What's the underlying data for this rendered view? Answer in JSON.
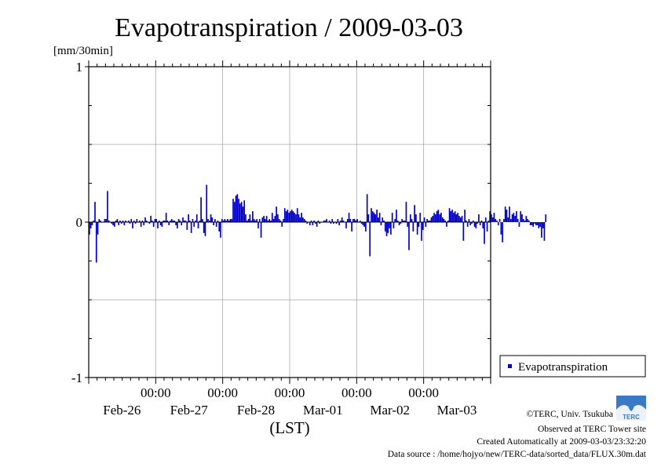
{
  "chart_data": {
    "type": "bar",
    "title": "Evapotranspiration / 2009-03-03",
    "unit_label": "[mm/30min]",
    "xlabel": "(LST)",
    "ylim": [
      -1,
      1
    ],
    "yticks": [
      {
        "v": 1,
        "label": "1"
      },
      {
        "v": 0,
        "label": "0"
      },
      {
        "v": -1,
        "label": "-1"
      }
    ],
    "x_range_hours": [
      0,
      144
    ],
    "xticks": [
      {
        "hour": 24,
        "time": "00:00",
        "date": "Feb-26"
      },
      {
        "hour": 48,
        "time": "00:00",
        "date": "Feb-27"
      },
      {
        "hour": 72,
        "time": "00:00",
        "date": "Feb-28"
      },
      {
        "hour": 96,
        "time": "00:00",
        "date": "Mar-01"
      },
      {
        "hour": 120,
        "time": "00:00",
        "date": "Mar-02"
      },
      {
        "hour": null,
        "time": "",
        "date": "Mar-03"
      }
    ],
    "grid": true,
    "legend_position": "right-bottom",
    "series": [
      {
        "name": "Evapotranspiration",
        "color": "#0000c8",
        "interval_hours": 0.5,
        "values": [
          -0.08,
          -0.04,
          -0.02,
          0.01,
          0.13,
          -0.26,
          -0.08,
          0.02,
          0.01,
          0,
          0,
          0.02,
          0.02,
          0.2,
          0.01,
          0,
          -0.01,
          -0.02,
          -0.03,
          0.01,
          0.02,
          -0.02,
          0.01,
          -0.01,
          0.01,
          -0.02,
          0.01,
          0,
          0.01,
          -0.01,
          0.02,
          -0.04,
          0.01,
          -0.01,
          0.02,
          0,
          0.01,
          -0.03,
          0.01,
          -0.02,
          0.03,
          0.01,
          0,
          -0.01,
          0.04,
          0.01,
          -0.03,
          0.02,
          0.02,
          -0.04,
          0.01,
          -0.02,
          -0.03,
          0.01,
          0.01,
          0.06,
          0.01,
          -0.02,
          0.01,
          0.02,
          0.01,
          0.01,
          -0.02,
          -0.04,
          0.02,
          0.01,
          -0.02,
          0.03,
          0.01,
          0.01,
          -0.05,
          0.05,
          0.01,
          -0.07,
          0.02,
          -0.03,
          0.01,
          0.05,
          -0.04,
          0.01,
          0.16,
          0.02,
          -0.07,
          -0.09,
          0.24,
          0.02,
          0.01,
          0.05,
          0.03,
          -0.02,
          0.02,
          -0.03,
          0.01,
          -0.06,
          -0.1,
          0.02,
          0.01,
          0.02,
          0.01,
          0.02,
          0.01,
          0.02,
          0.02,
          0.15,
          0.13,
          0.17,
          0.18,
          0.15,
          0.12,
          0.13,
          0.1,
          0.14,
          0.05,
          0.01,
          0.02,
          0.05,
          0.01,
          0.07,
          0.02,
          0.01,
          0.02,
          -0.04,
          0.02,
          -0.1,
          0.03,
          0.04,
          0.02,
          0.04,
          0.01,
          0.02,
          0.01,
          0.06,
          0.02,
          0.04,
          0.1,
          0.05,
          0.02,
          0.01,
          -0.03,
          0.02,
          0.09,
          0.07,
          0.08,
          0.06,
          0.07,
          0.08,
          0.07,
          0.06,
          0.05,
          0.09,
          0.05,
          0.03,
          0.06,
          0.03,
          0.02,
          0.01,
          -0.01,
          0,
          -0.02,
          0.01,
          -0.02,
          0.01,
          -0.01,
          -0.03,
          0.01,
          -0.01,
          0,
          0,
          0.01,
          0.01,
          0.02,
          0,
          0.01,
          -0.01,
          0.02,
          -0.01,
          0,
          -0.01,
          0.02,
          -0.02,
          0.01,
          0.03,
          0.01,
          0,
          -0.04,
          0.02,
          0.06,
          0.02,
          -0.06,
          0.02,
          0.02,
          0.01,
          0.02,
          0,
          0.01,
          -0.01,
          -0.02,
          -0.03,
          -0.06,
          0.18,
          0.05,
          -0.22,
          0.09,
          0.07,
          0.06,
          0.05,
          0.08,
          0.03,
          0.06,
          -0.02,
          0.03,
          0.01,
          -0.06,
          -0.09,
          -0.07,
          -0.04,
          -0.08,
          0.06,
          -0.04,
          0.02,
          0.08,
          0.01,
          -0.02,
          -0.01,
          0.02,
          0.01,
          0.01,
          0.13,
          -0.03,
          -0.18,
          0.05,
          0.02,
          -0.06,
          0.11,
          0.05,
          -0.08,
          -0.03,
          0.06,
          -0.12,
          -0.05,
          0.03,
          -0.03,
          0.02,
          0.01,
          0.01,
          0.03,
          0.04,
          0.06,
          0.05,
          0.07,
          0.08,
          0.05,
          0.06,
          0.03,
          0.02,
          0.01,
          -0.03,
          0.01,
          0.09,
          0.07,
          0.08,
          0.06,
          0.07,
          0.05,
          0.06,
          0.04,
          0.03,
          0.04,
          -0.12,
          0.08,
          0.01,
          -0.03,
          0.02,
          -0.02,
          -0.01,
          0.01,
          -0.03,
          -0.04,
          -0.01,
          0.05,
          -0.02,
          0.01,
          -0.04,
          -0.14,
          0.03,
          -0.06,
          0.01,
          0.07,
          0.05,
          0.03,
          0.06,
          0.02,
          0.01,
          -0.02,
          0.02,
          -0.08,
          -0.13,
          0.02,
          0.1,
          0.08,
          0.03,
          0.1,
          0.02,
          0.05,
          0.06,
          0.04,
          0.07,
          0.02,
          -0.03,
          0.07,
          0.05,
          0.02,
          0.01,
          0.04,
          0.02,
          0.01,
          -0.02,
          -0.02,
          -0.03,
          -0.01,
          -0.02,
          -0.02,
          -0.04,
          -0.03,
          -0.1,
          -0.04,
          -0.12,
          0.05
        ]
      }
    ]
  },
  "footer": {
    "credit": "©TERC, Univ. Tsukuba",
    "observed": "Observed at TERC Tower site",
    "created": "Created Automatically at 2009-03-03/23:32:20",
    "source": "Data source : /home/hojyo/new/TERC-data/sorted_data/FLUX.30m.dat"
  },
  "logo": {
    "text": "TERC"
  }
}
